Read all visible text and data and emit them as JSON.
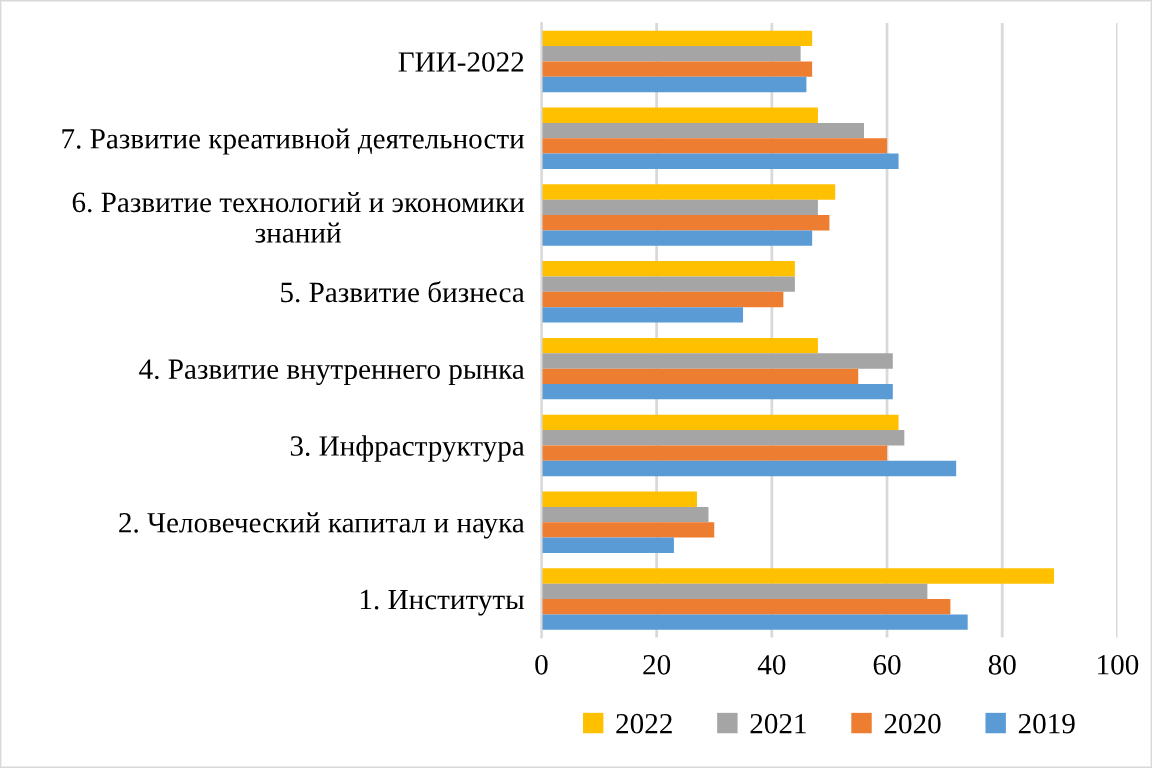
{
  "chart_data": {
    "type": "bar",
    "orientation": "horizontal",
    "categories": [
      "ГИИ-2022",
      "7. Развитие креативной деятельности",
      "6. Развитие технологий и экономики\nзнаний",
      "5. Развитие бизнеса",
      "4. Развитие внутреннего рынка",
      "3. Инфраструктура",
      "2. Человеческий капитал и наука",
      "1. Институты"
    ],
    "series": [
      {
        "name": "2022",
        "color": "#ffc000",
        "values": [
          47,
          48,
          51,
          44,
          48,
          62,
          27,
          89
        ]
      },
      {
        "name": "2021",
        "color": "#a5a5a5",
        "values": [
          45,
          56,
          48,
          44,
          61,
          63,
          29,
          67
        ]
      },
      {
        "name": "2020",
        "color": "#ed7d31",
        "values": [
          47,
          60,
          50,
          42,
          55,
          60,
          30,
          71
        ]
      },
      {
        "name": "2019",
        "color": "#5b9bd5",
        "values": [
          46,
          62,
          47,
          35,
          61,
          72,
          23,
          74
        ]
      }
    ],
    "xlim": [
      0,
      100
    ],
    "xticks": [
      0,
      20,
      40,
      60,
      80,
      100
    ],
    "grid": "x",
    "legend": "bottom"
  }
}
